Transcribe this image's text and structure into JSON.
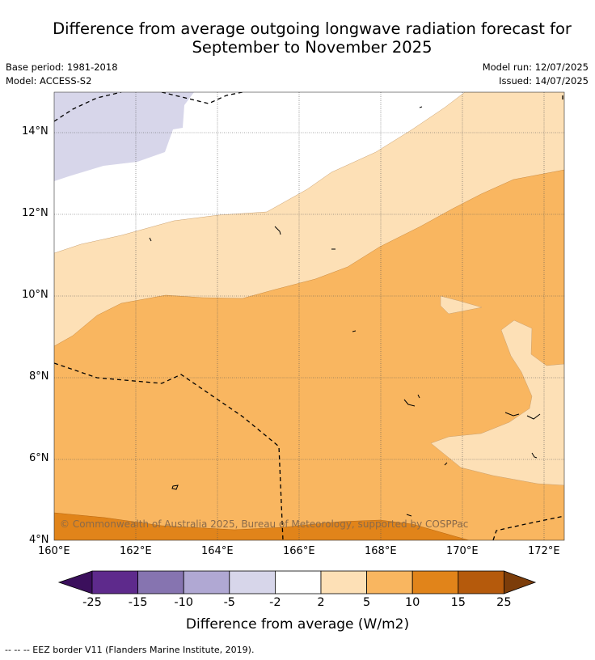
{
  "title_line1": "Difference from average outgoing longwave radiation forecast for",
  "title_line2": "September to November 2025",
  "base_period": "Base period: 1981-2018",
  "model": "Model: ACCESS-S2",
  "model_run": "Model run: 12/07/2025",
  "issued": "Issued: 14/07/2025",
  "lat_labels": [
    "14°N",
    "12°N",
    "10°N",
    "8°N",
    "6°N",
    "4°N"
  ],
  "lon_labels": [
    "160°E",
    "162°E",
    "164°E",
    "166°E",
    "168°E",
    "170°E",
    "172°E"
  ],
  "copyright": "© Commonwealth of Australia 2025, Bureau of Meteorology, supported by COSPPac",
  "colorbar": {
    "ticks": [
      "-25",
      "-15",
      "-10",
      "-5",
      "-2",
      "2",
      "5",
      "10",
      "15",
      "25"
    ],
    "colors": [
      "#3b0f5c",
      "#5e2a8c",
      "#8674b0",
      "#b0a8d3",
      "#d7d6ea",
      "#ffffff",
      "#fde0b6",
      "#f9b660",
      "#e1841a",
      "#b55a0c",
      "#7c3d0a"
    ],
    "title": "Difference from average (W/m2)"
  },
  "footnote": "--  --  -- EEZ border V11 (Flanders Marine Institute, 2019)."
}
